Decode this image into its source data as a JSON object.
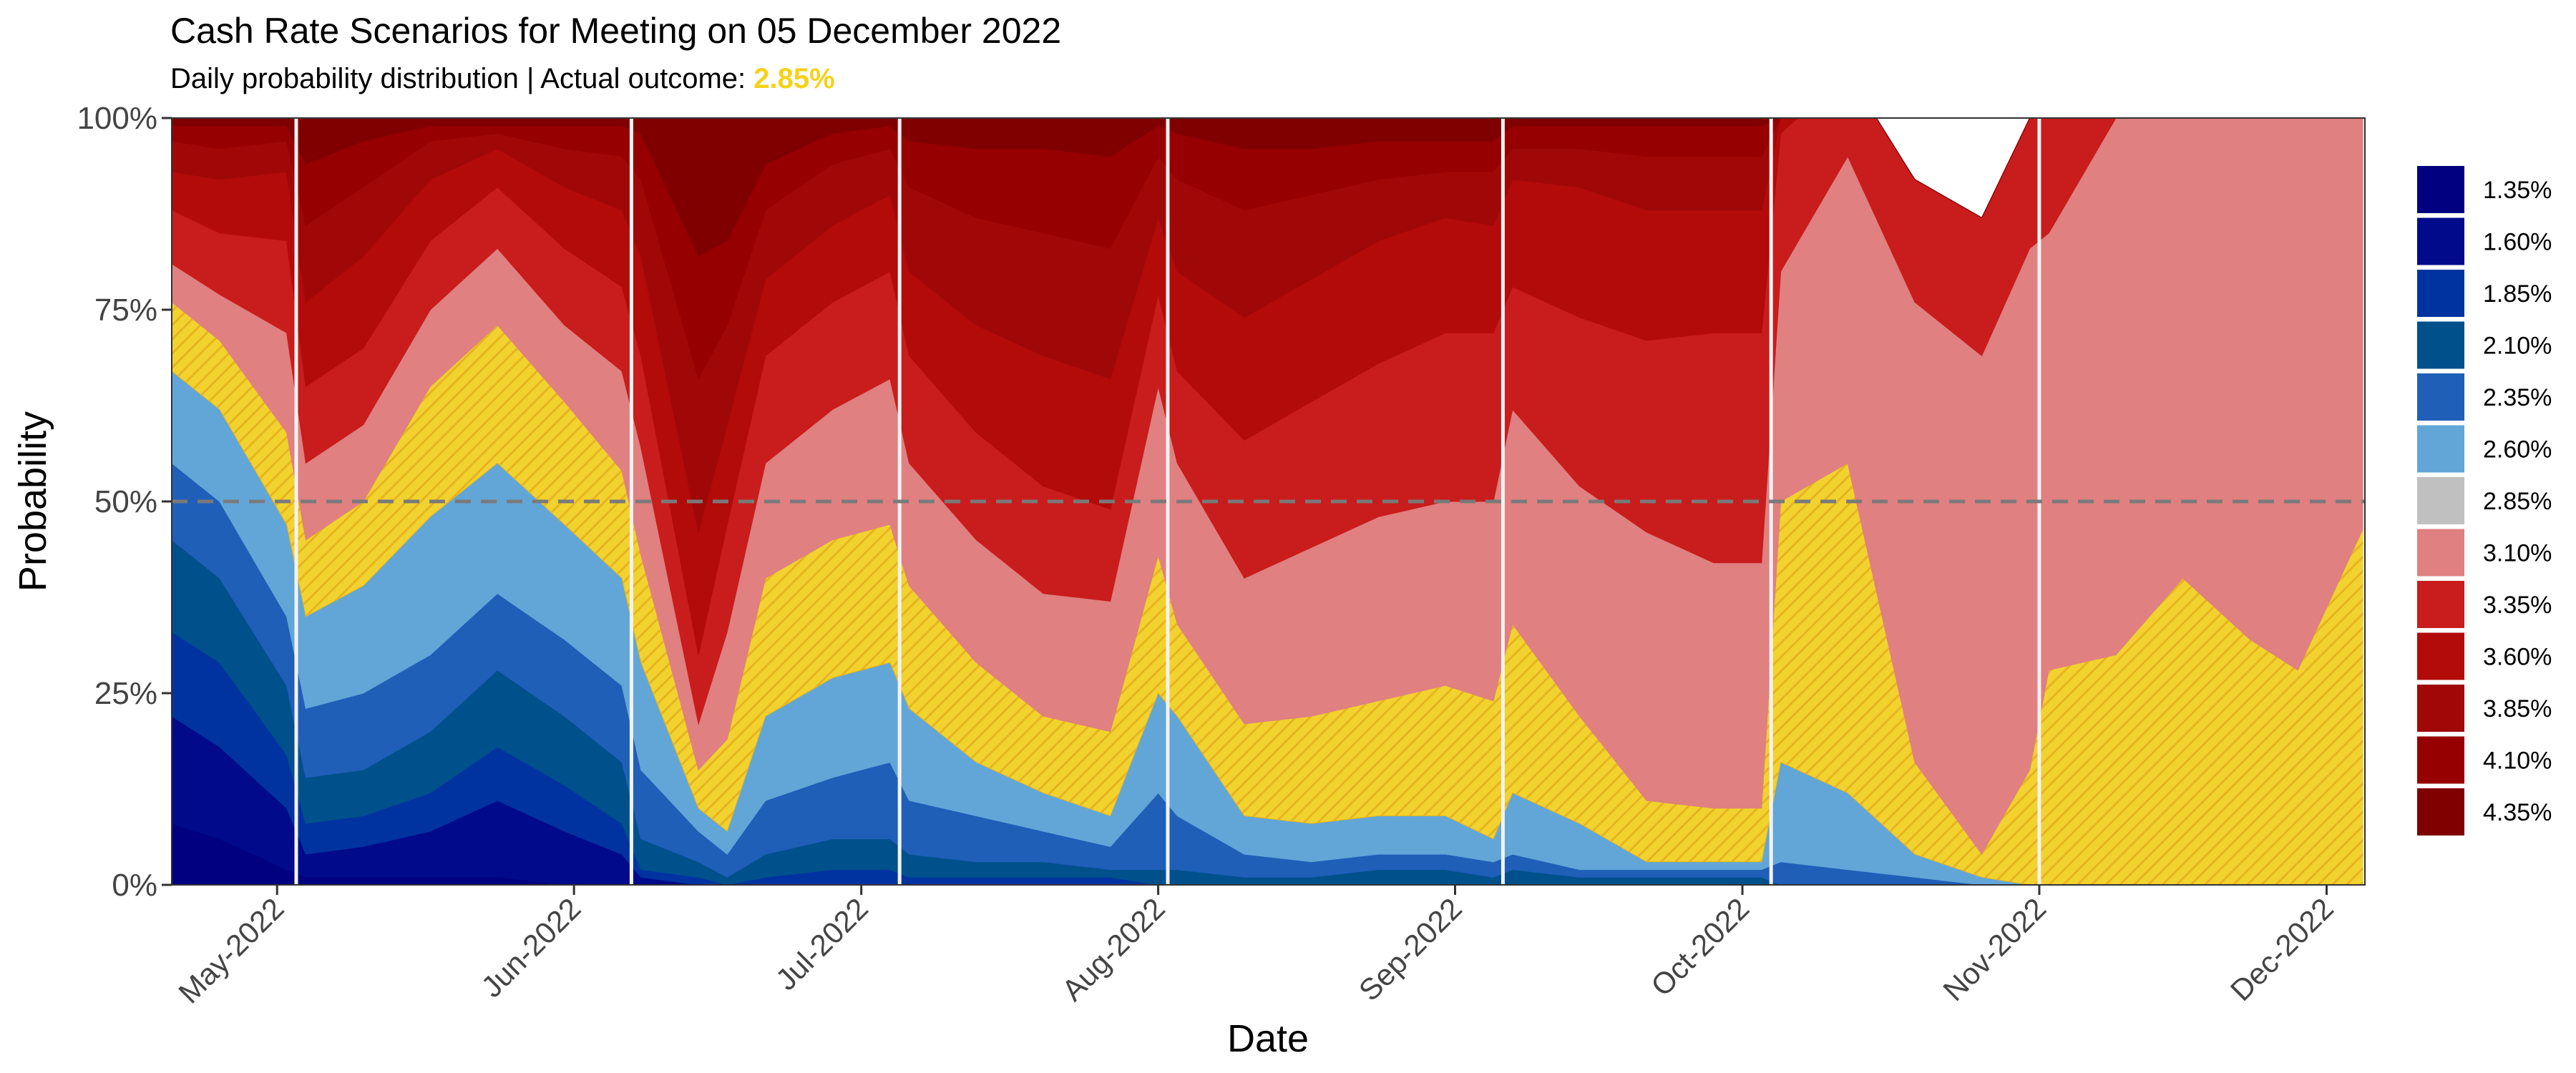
{
  "chart_data": {
    "type": "area",
    "title": "Cash Rate Scenarios for Meeting on 05 December 2022",
    "subtitle_prefix": "Daily probability distribution | Actual outcome: ",
    "actual_outcome": "2.85%",
    "xlabel": "Date",
    "ylabel": "Probability",
    "x_ticks": [
      "May-2022",
      "Jun-2022",
      "Jul-2022",
      "Aug-2022",
      "Sep-2022",
      "Oct-2022",
      "Nov-2022",
      "Dec-2022"
    ],
    "x_tick_dates": [
      "2022-05-01",
      "2022-06-01",
      "2022-07-01",
      "2022-08-01",
      "2022-09-01",
      "2022-10-01",
      "2022-11-01",
      "2022-12-01"
    ],
    "xlim": [
      "2022-04-20",
      "2022-12-05"
    ],
    "y_ticks": [
      "0%",
      "25%",
      "50%",
      "75%",
      "100%"
    ],
    "ylim": [
      0,
      1
    ],
    "reference_line": 0.5,
    "meeting_dates": [
      "2022-05-03",
      "2022-06-07",
      "2022-07-05",
      "2022-08-02",
      "2022-09-06",
      "2022-10-04",
      "2022-11-01",
      "2022-12-05"
    ],
    "grid": false,
    "legend_position": "right",
    "highlight_scenario": "2.85%",
    "highlight_pattern": "yellow diagonal hatch",
    "colors": {
      "1.35%": "#000080",
      "1.60%": "#000A8A",
      "1.85%": "#0033A0",
      "2.10%": "#00508C",
      "2.35%": "#1F5FB8",
      "2.60%": "#62A6D8",
      "2.85%": "#C0C0C0",
      "3.10%": "#E08080",
      "3.35%": "#C91C1C",
      "3.60%": "#B30A0A",
      "3.85%": "#A00808",
      "4.10%": "#960000",
      "4.35%": "#800000"
    },
    "highlight_colors": {
      "base": "#F2D22E",
      "stripe": "#E6B420"
    },
    "series_order": [
      "1.35%",
      "1.60%",
      "1.85%",
      "2.10%",
      "2.35%",
      "2.60%",
      "2.85%",
      "3.10%",
      "3.35%",
      "3.60%",
      "3.85%",
      "4.10%",
      "4.35%"
    ],
    "dates": [
      "2022-04-20",
      "2022-04-25",
      "2022-05-02",
      "2022-05-04",
      "2022-05-10",
      "2022-05-17",
      "2022-05-24",
      "2022-05-31",
      "2022-06-06",
      "2022-06-08",
      "2022-06-14",
      "2022-06-17",
      "2022-06-21",
      "2022-06-28",
      "2022-07-04",
      "2022-07-06",
      "2022-07-13",
      "2022-07-20",
      "2022-07-27",
      "2022-08-01",
      "2022-08-03",
      "2022-08-10",
      "2022-08-17",
      "2022-08-24",
      "2022-08-31",
      "2022-09-05",
      "2022-09-07",
      "2022-09-14",
      "2022-09-21",
      "2022-09-28",
      "2022-10-03",
      "2022-10-05",
      "2022-10-12",
      "2022-10-19",
      "2022-10-26",
      "2022-10-31",
      "2022-11-02",
      "2022-11-09",
      "2022-11-16",
      "2022-11-23",
      "2022-11-28",
      "2022-12-05"
    ],
    "series": [
      {
        "name": "1.35%",
        "values": [
          0.08,
          0.06,
          0.02,
          0.01,
          0.01,
          0.01,
          0.01,
          0.0,
          0.0,
          0.0,
          0.0,
          0.0,
          0.0,
          0.0,
          0.0,
          0.0,
          0.0,
          0.0,
          0.0,
          0.0,
          0.0,
          0.0,
          0.0,
          0.0,
          0.0,
          0.0,
          0.0,
          0.0,
          0.0,
          0.0,
          0.0,
          0.0,
          0.0,
          0.0,
          0.0,
          0.0,
          0.0,
          0.0,
          0.0,
          0.0,
          0.0,
          0.0
        ]
      },
      {
        "name": "1.60%",
        "values": [
          0.14,
          0.12,
          0.08,
          0.03,
          0.04,
          0.06,
          0.1,
          0.07,
          0.04,
          0.01,
          0.0,
          0.0,
          0.0,
          0.0,
          0.0,
          0.0,
          0.0,
          0.0,
          0.0,
          0.0,
          0.0,
          0.0,
          0.0,
          0.0,
          0.0,
          0.0,
          0.0,
          0.0,
          0.0,
          0.0,
          0.0,
          0.0,
          0.0,
          0.0,
          0.0,
          0.0,
          0.0,
          0.0,
          0.0,
          0.0,
          0.0,
          0.0
        ]
      },
      {
        "name": "1.85%",
        "values": [
          0.11,
          0.11,
          0.07,
          0.04,
          0.04,
          0.05,
          0.07,
          0.06,
          0.04,
          0.01,
          0.01,
          0.0,
          0.01,
          0.02,
          0.02,
          0.01,
          0.01,
          0.01,
          0.01,
          0.0,
          0.0,
          0.0,
          0.0,
          0.0,
          0.0,
          0.0,
          0.0,
          0.0,
          0.0,
          0.0,
          0.0,
          0.0,
          0.0,
          0.0,
          0.0,
          0.0,
          0.0,
          0.0,
          0.0,
          0.0,
          0.0,
          0.0
        ]
      },
      {
        "name": "2.10%",
        "values": [
          0.12,
          0.11,
          0.09,
          0.06,
          0.06,
          0.08,
          0.1,
          0.09,
          0.08,
          0.04,
          0.02,
          0.01,
          0.03,
          0.04,
          0.04,
          0.03,
          0.02,
          0.02,
          0.01,
          0.02,
          0.02,
          0.01,
          0.01,
          0.02,
          0.02,
          0.01,
          0.02,
          0.01,
          0.01,
          0.01,
          0.01,
          0.0,
          0.0,
          0.0,
          0.0,
          0.0,
          0.0,
          0.0,
          0.0,
          0.0,
          0.0,
          0.0
        ]
      },
      {
        "name": "2.35%",
        "values": [
          0.1,
          0.1,
          0.09,
          0.09,
          0.1,
          0.1,
          0.1,
          0.1,
          0.1,
          0.09,
          0.04,
          0.03,
          0.07,
          0.08,
          0.1,
          0.07,
          0.06,
          0.04,
          0.03,
          0.1,
          0.07,
          0.03,
          0.02,
          0.02,
          0.02,
          0.02,
          0.02,
          0.01,
          0.01,
          0.01,
          0.01,
          0.03,
          0.02,
          0.01,
          0.0,
          0.0,
          0.0,
          0.0,
          0.0,
          0.0,
          0.0,
          0.0
        ]
      },
      {
        "name": "2.60%",
        "values": [
          0.12,
          0.12,
          0.12,
          0.12,
          0.14,
          0.18,
          0.17,
          0.15,
          0.14,
          0.14,
          0.03,
          0.03,
          0.11,
          0.13,
          0.13,
          0.12,
          0.07,
          0.05,
          0.04,
          0.13,
          0.13,
          0.05,
          0.05,
          0.05,
          0.05,
          0.03,
          0.08,
          0.06,
          0.01,
          0.01,
          0.01,
          0.13,
          0.1,
          0.03,
          0.01,
          0.0,
          0.0,
          0.0,
          0.0,
          0.0,
          0.0,
          0.0
        ]
      },
      {
        "name": "2.85%",
        "values": [
          0.09,
          0.09,
          0.12,
          0.1,
          0.11,
          0.17,
          0.18,
          0.16,
          0.14,
          0.14,
          0.05,
          0.12,
          0.18,
          0.18,
          0.18,
          0.16,
          0.13,
          0.1,
          0.11,
          0.18,
          0.12,
          0.12,
          0.14,
          0.15,
          0.17,
          0.18,
          0.22,
          0.14,
          0.08,
          0.07,
          0.07,
          0.34,
          0.43,
          0.12,
          0.03,
          0.15,
          0.28,
          0.3,
          0.4,
          0.32,
          0.28,
          0.47
        ]
      },
      {
        "name": "3.10%",
        "values": [
          0.05,
          0.06,
          0.13,
          0.1,
          0.1,
          0.1,
          0.1,
          0.1,
          0.13,
          0.14,
          0.06,
          0.14,
          0.15,
          0.17,
          0.19,
          0.16,
          0.16,
          0.16,
          0.17,
          0.22,
          0.21,
          0.19,
          0.22,
          0.24,
          0.24,
          0.26,
          0.28,
          0.3,
          0.35,
          0.32,
          0.32,
          0.3,
          0.4,
          0.6,
          0.65,
          0.68,
          0.57,
          0.7,
          0.6,
          0.68,
          0.72,
          0.53
        ]
      },
      {
        "name": "3.35%",
        "values": [
          0.07,
          0.08,
          0.12,
          0.1,
          0.1,
          0.09,
          0.08,
          0.1,
          0.11,
          0.12,
          0.09,
          0.14,
          0.14,
          0.14,
          0.14,
          0.14,
          0.14,
          0.14,
          0.12,
          0.12,
          0.12,
          0.18,
          0.19,
          0.2,
          0.22,
          0.22,
          0.16,
          0.22,
          0.25,
          0.3,
          0.3,
          0.18,
          0.11,
          0.16,
          0.18,
          0.17,
          0.15,
          0.0,
          0.0,
          0.0,
          0.0,
          0.0
        ]
      },
      {
        "name": "3.60%",
        "values": [
          0.05,
          0.07,
          0.09,
          0.11,
          0.12,
          0.08,
          0.05,
          0.08,
          0.1,
          0.13,
          0.16,
          0.13,
          0.1,
          0.1,
          0.1,
          0.11,
          0.14,
          0.17,
          0.17,
          0.1,
          0.13,
          0.16,
          0.16,
          0.16,
          0.15,
          0.14,
          0.14,
          0.17,
          0.17,
          0.16,
          0.16,
          0.02,
          0.0,
          0.0,
          0.0,
          0.0,
          0.0,
          0.0,
          0.0,
          0.0,
          0.0,
          0.0
        ]
      },
      {
        "name": "3.85%",
        "values": [
          0.04,
          0.04,
          0.04,
          0.1,
          0.09,
          0.05,
          0.02,
          0.05,
          0.07,
          0.1,
          0.2,
          0.13,
          0.09,
          0.08,
          0.06,
          0.11,
          0.14,
          0.16,
          0.17,
          0.08,
          0.12,
          0.14,
          0.11,
          0.08,
          0.06,
          0.07,
          0.04,
          0.05,
          0.07,
          0.07,
          0.07,
          0.0,
          0.0,
          0.0,
          0.0,
          0.0,
          0.0,
          0.0,
          0.0,
          0.0,
          0.0,
          0.0
        ]
      },
      {
        "name": "4.10%",
        "values": [
          0.02,
          0.03,
          0.02,
          0.08,
          0.06,
          0.02,
          0.01,
          0.03,
          0.04,
          0.06,
          0.16,
          0.11,
          0.06,
          0.04,
          0.03,
          0.06,
          0.09,
          0.11,
          0.12,
          0.04,
          0.06,
          0.08,
          0.06,
          0.05,
          0.04,
          0.04,
          0.03,
          0.03,
          0.04,
          0.04,
          0.04,
          0.0,
          0.0,
          0.0,
          0.0,
          0.0,
          0.0,
          0.0,
          0.0,
          0.0,
          0.0,
          0.0
        ]
      },
      {
        "name": "4.35%",
        "values": [
          0.01,
          0.01,
          0.01,
          0.06,
          0.03,
          0.01,
          0.01,
          0.01,
          0.01,
          0.02,
          0.18,
          0.16,
          0.07,
          0.02,
          0.01,
          0.03,
          0.04,
          0.04,
          0.05,
          0.01,
          0.02,
          0.04,
          0.04,
          0.03,
          0.03,
          0.03,
          0.01,
          0.01,
          0.01,
          0.01,
          0.01,
          0.0,
          0.0,
          0.0,
          0.0,
          0.0,
          0.0,
          0.0,
          0.0,
          0.0,
          0.0,
          0.0
        ]
      }
    ]
  }
}
